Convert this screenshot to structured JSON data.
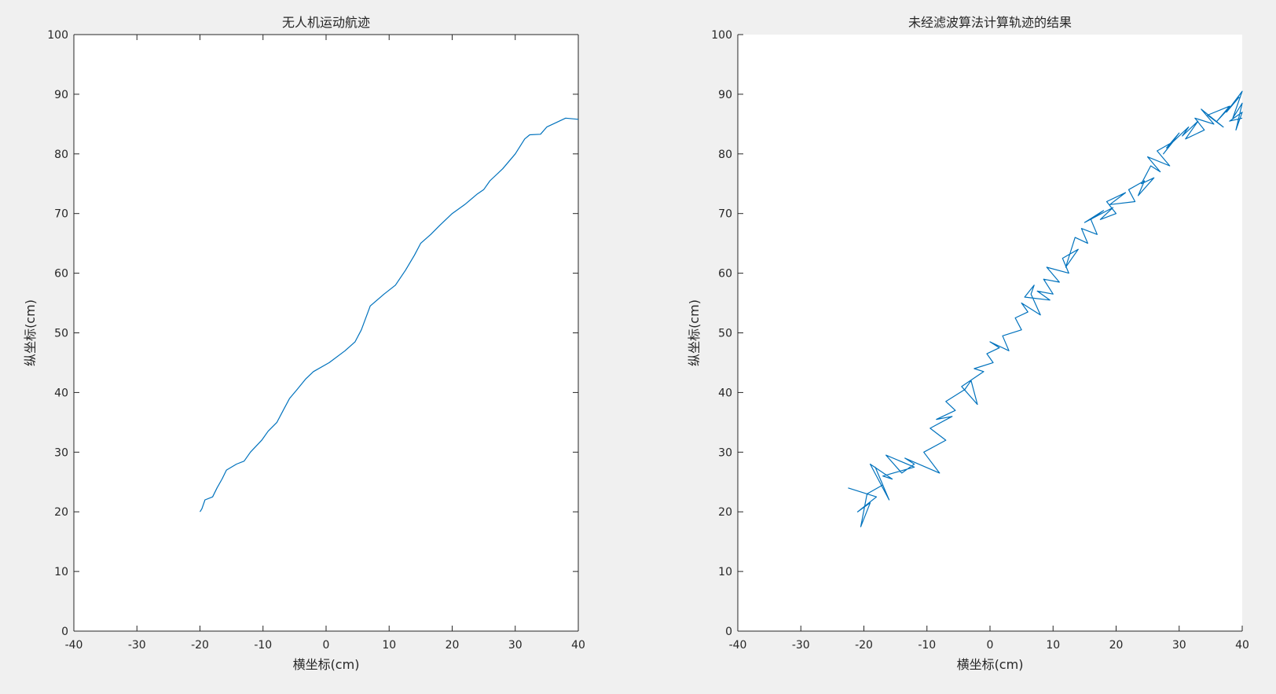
{
  "chart_data": [
    {
      "type": "line",
      "title": "无人机运动航迹",
      "xlabel": "横坐标(cm)",
      "ylabel": "纵坐标(cm)",
      "xlim": [
        -40,
        40
      ],
      "ylim": [
        0,
        100
      ],
      "xticks": [
        -40,
        -30,
        -20,
        -10,
        0,
        10,
        20,
        30,
        40
      ],
      "yticks": [
        0,
        10,
        20,
        30,
        40,
        50,
        60,
        70,
        80,
        90,
        100
      ],
      "grid": false,
      "box": true,
      "series": [
        {
          "color": "#0072bd",
          "x": [
            -20,
            -19.7,
            -19.2,
            -18,
            -17.3,
            -16.5,
            -15.8,
            -14.2,
            -13,
            -12,
            -10.2,
            -9.2,
            -7.8,
            -6.8,
            -5.8,
            -4.6,
            -3.2,
            -2,
            0.5,
            3,
            4.6,
            5.6,
            7,
            9.2,
            11,
            12.6,
            14,
            15,
            16.6,
            18,
            20,
            22,
            24,
            25,
            26,
            28,
            30,
            31.5,
            32.3,
            34,
            35,
            36.6,
            38,
            40
          ],
          "y": [
            20,
            20.5,
            22,
            22.5,
            24,
            25.5,
            27,
            28,
            28.5,
            30,
            32,
            33.5,
            35,
            37,
            39,
            40.5,
            42.3,
            43.5,
            45,
            47,
            48.5,
            50.5,
            54.5,
            56.5,
            58,
            60.5,
            63,
            65,
            66.5,
            68,
            70,
            71.5,
            73.3,
            74,
            75.5,
            77.5,
            80,
            82.5,
            83.2,
            83.3,
            84.5,
            85.3,
            86,
            85.8
          ]
        }
      ]
    },
    {
      "type": "line",
      "title": "未经滤波算法计算轨迹的结果",
      "xlabel": "横坐标(cm)",
      "ylabel": "纵坐标(cm)",
      "xlim": [
        -40,
        40
      ],
      "ylim": [
        0,
        100
      ],
      "xticks": [
        -40,
        -30,
        -20,
        -10,
        0,
        10,
        20,
        30,
        40
      ],
      "yticks": [
        0,
        10,
        20,
        30,
        40,
        50,
        60,
        70,
        80,
        90,
        100
      ],
      "grid": false,
      "box": false,
      "series": [
        {
          "color": "#0072bd",
          "x": [
            -22.5,
            -18,
            -21,
            -19,
            -20.5,
            -19.5,
            -17,
            -18.2,
            -16,
            -19,
            -15.5,
            -17,
            -12,
            -16.5,
            -14,
            -12,
            -13.5,
            -8,
            -10.5,
            -7,
            -9.5,
            -6,
            -8.5,
            -5.5,
            -7,
            -4,
            -3,
            -2,
            -4.5,
            -1,
            -2.5,
            0.5,
            -0.5,
            1.5,
            0,
            3,
            2,
            5,
            4,
            6,
            5,
            8,
            6.5,
            7,
            5.5,
            9.5,
            7.5,
            10,
            8.5,
            11,
            9,
            12.5,
            11.5,
            14,
            12,
            13.5,
            15.5,
            14.5,
            17,
            16,
            18,
            15,
            19.5,
            17.5,
            20,
            18.5,
            21.5,
            19,
            23,
            22,
            24.5,
            23.5,
            26,
            24,
            25.5,
            27,
            25,
            28.5,
            26.5,
            29,
            27.5,
            30,
            28,
            31.5,
            30.5,
            33,
            31,
            34,
            32.5,
            35.5,
            33.5,
            37,
            34.5,
            38,
            36,
            39.5,
            37.5,
            40,
            38.5,
            40,
            39,
            40,
            38,
            40
          ],
          "y": [
            24,
            22.5,
            20,
            21.5,
            17.5,
            23,
            24.5,
            27.5,
            22,
            28,
            25.5,
            26,
            27.5,
            29.5,
            26.5,
            28,
            29,
            26.5,
            30,
            32,
            34,
            36,
            35.5,
            37,
            38.5,
            40.5,
            42,
            38,
            41,
            43.5,
            44,
            45,
            46.5,
            47.5,
            48.5,
            47,
            49.5,
            50.5,
            52.5,
            53.5,
            55,
            53,
            56.5,
            58,
            56,
            55.5,
            57,
            56.5,
            59,
            58.5,
            61,
            60,
            62.5,
            64,
            61,
            66,
            65,
            67.5,
            66.5,
            69,
            70.5,
            68.5,
            71,
            69,
            70,
            72,
            73.5,
            71.5,
            72,
            74,
            75.5,
            73,
            76,
            75,
            78,
            77,
            79.5,
            78,
            80.5,
            82,
            80,
            83.5,
            81,
            84.5,
            83,
            85.5,
            82.5,
            84,
            86,
            85,
            87.5,
            84.5,
            86.5,
            88,
            85.5,
            89.5,
            87,
            90.5,
            86,
            88.5,
            84,
            87,
            85.5,
            86
          ]
        }
      ]
    }
  ]
}
